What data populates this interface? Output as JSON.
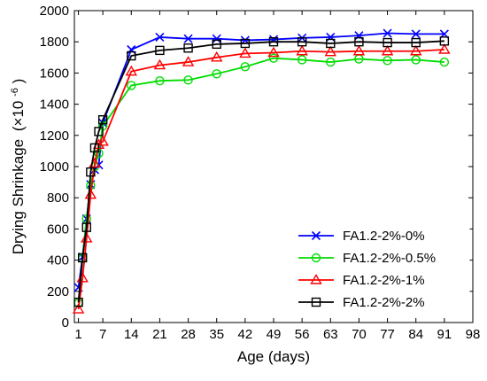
{
  "chart_data": {
    "type": "line",
    "xlabel": "Age (days)",
    "ylabel": "Drying Shrinkage",
    "ylabel_unit": "(×10",
    "ylabel_exp": "-6",
    "ylabel_close": ")",
    "xlim": [
      0,
      98
    ],
    "ylim": [
      0,
      2000
    ],
    "xticks": [
      1,
      7,
      14,
      21,
      28,
      35,
      42,
      49,
      56,
      63,
      70,
      77,
      84,
      91,
      98
    ],
    "yticks": [
      0,
      200,
      400,
      600,
      800,
      1000,
      1200,
      1400,
      1600,
      1800,
      2000
    ],
    "legend_position": "bottom-right",
    "grid": false,
    "series": [
      {
        "name": "FA1.2-2%-0%",
        "color": "#0000ff",
        "marker": "x",
        "x": [
          1,
          2,
          3,
          4,
          5,
          6,
          7,
          14,
          21,
          28,
          35,
          42,
          49,
          56,
          63,
          70,
          77,
          84,
          91
        ],
        "y": [
          225,
          420,
          665,
          885,
          980,
          1010,
          1280,
          1750,
          1830,
          1820,
          1820,
          1810,
          1815,
          1825,
          1830,
          1840,
          1855,
          1850,
          1850
        ]
      },
      {
        "name": "FA1.2-2%-0.5%",
        "color": "#00dd00",
        "marker": "circle",
        "x": [
          1,
          2,
          3,
          4,
          5,
          6,
          7,
          14,
          21,
          28,
          35,
          42,
          49,
          56,
          63,
          70,
          77,
          84,
          91
        ],
        "y": [
          125,
          410,
          665,
          880,
          1000,
          1085,
          1260,
          1520,
          1550,
          1555,
          1595,
          1640,
          1695,
          1685,
          1670,
          1690,
          1680,
          1685,
          1670
        ]
      },
      {
        "name": "FA1.2-2%-1%",
        "color": "#ff0000",
        "marker": "triangle",
        "x": [
          1,
          2,
          3,
          4,
          5,
          6,
          7,
          14,
          21,
          28,
          35,
          42,
          49,
          56,
          63,
          70,
          77,
          84,
          91
        ],
        "y": [
          85,
          285,
          540,
          820,
          1020,
          1140,
          1160,
          1610,
          1650,
          1670,
          1700,
          1725,
          1730,
          1740,
          1735,
          1740,
          1740,
          1740,
          1750
        ]
      },
      {
        "name": "FA1.2-2%-2%",
        "color": "#000000",
        "marker": "square",
        "x": [
          1,
          2,
          3,
          4,
          5,
          6,
          7,
          14,
          21,
          28,
          35,
          42,
          49,
          56,
          63,
          70,
          77,
          84,
          91
        ],
        "y": [
          130,
          415,
          610,
          965,
          1120,
          1225,
          1300,
          1710,
          1745,
          1760,
          1785,
          1790,
          1800,
          1800,
          1790,
          1800,
          1795,
          1795,
          1805
        ]
      }
    ]
  }
}
